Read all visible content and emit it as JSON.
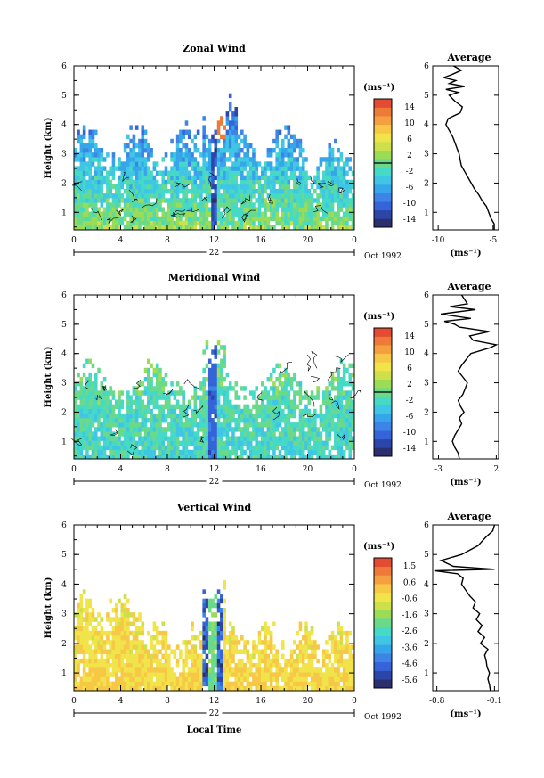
{
  "chart_data": [
    {
      "type": "heatmap",
      "title": "Zonal Wind",
      "ylabel": "Height (km)",
      "xlabel": "",
      "date_label": "Oct 1992",
      "day_label": "22",
      "x_ticks": [
        "0",
        "4",
        "8",
        "12",
        "16",
        "20",
        "0"
      ],
      "y_ticks": [
        "1",
        "2",
        "3",
        "4",
        "5",
        "6"
      ],
      "xlim": [
        0,
        24
      ],
      "ylim": [
        0.4,
        6.0
      ],
      "colorbar": {
        "unit": "(ms⁻¹)",
        "labels": [
          "14",
          "10",
          "6",
          "2",
          "-2",
          "-6",
          "-10",
          "-14"
        ],
        "range": [
          -15,
          15
        ]
      },
      "average_profile": {
        "title": "Average",
        "unit": "(ms⁻¹)",
        "x_ticks": [
          "-10",
          "-5"
        ],
        "xlim": [
          -10.5,
          -4.5
        ],
        "points": [
          [
            -4.9,
            0.4
          ],
          [
            -4.9,
            0.6
          ],
          [
            -5.2,
            0.8
          ],
          [
            -5.4,
            1.0
          ],
          [
            -5.6,
            1.2
          ],
          [
            -6.0,
            1.4
          ],
          [
            -6.3,
            1.6
          ],
          [
            -6.7,
            1.8
          ],
          [
            -7.0,
            2.0
          ],
          [
            -7.3,
            2.2
          ],
          [
            -7.6,
            2.4
          ],
          [
            -7.9,
            2.6
          ],
          [
            -8.0,
            2.8
          ],
          [
            -8.1,
            3.0
          ],
          [
            -8.3,
            3.2
          ],
          [
            -8.5,
            3.4
          ],
          [
            -8.7,
            3.6
          ],
          [
            -9.0,
            3.8
          ],
          [
            -9.3,
            4.0
          ],
          [
            -9.1,
            4.2
          ],
          [
            -8.0,
            4.4
          ],
          [
            -7.8,
            4.6
          ],
          [
            -8.5,
            4.8
          ],
          [
            -9.0,
            5.0
          ],
          [
            -8.2,
            5.1
          ],
          [
            -9.3,
            5.2
          ],
          [
            -7.6,
            5.3
          ],
          [
            -9.0,
            5.4
          ],
          [
            -8.4,
            5.5
          ],
          [
            -9.5,
            5.6
          ],
          [
            -8.8,
            5.7
          ],
          [
            -7.9,
            5.85
          ],
          [
            -8.6,
            6.0
          ]
        ]
      }
    },
    {
      "type": "heatmap",
      "title": "Meridional Wind",
      "ylabel": "Height (km)",
      "xlabel": "",
      "date_label": "Oct 1992",
      "day_label": "22",
      "x_ticks": [
        "0",
        "4",
        "8",
        "12",
        "16",
        "20",
        "0"
      ],
      "y_ticks": [
        "1",
        "2",
        "3",
        "4",
        "5",
        "6"
      ],
      "xlim": [
        0,
        24
      ],
      "ylim": [
        0.4,
        6.0
      ],
      "colorbar": {
        "unit": "(ms⁻¹)",
        "labels": [
          "14",
          "10",
          "6",
          "2",
          "-2",
          "-6",
          "-10",
          "-14"
        ],
        "range": [
          -15,
          15
        ]
      },
      "average_profile": {
        "title": "Average",
        "unit": "(ms⁻¹)",
        "x_ticks": [
          "-3",
          "2"
        ],
        "xlim": [
          -3.5,
          2.2
        ],
        "points": [
          [
            -1.2,
            0.4
          ],
          [
            -1.3,
            0.6
          ],
          [
            -1.6,
            0.8
          ],
          [
            -1.8,
            1.0
          ],
          [
            -1.6,
            1.2
          ],
          [
            -1.3,
            1.4
          ],
          [
            -1.0,
            1.6
          ],
          [
            -1.2,
            1.8
          ],
          [
            -0.8,
            2.0
          ],
          [
            -1.1,
            2.2
          ],
          [
            -1.3,
            2.4
          ],
          [
            -0.9,
            2.6
          ],
          [
            -0.7,
            2.8
          ],
          [
            -0.5,
            3.0
          ],
          [
            -0.9,
            3.2
          ],
          [
            -1.3,
            3.4
          ],
          [
            -1.0,
            3.6
          ],
          [
            -0.6,
            3.8
          ],
          [
            -0.2,
            4.0
          ],
          [
            1.5,
            4.2
          ],
          [
            2.0,
            4.3
          ],
          [
            0.0,
            4.45
          ],
          [
            -0.3,
            4.6
          ],
          [
            1.4,
            4.75
          ],
          [
            -1.2,
            4.9
          ],
          [
            -1.6,
            5.0
          ],
          [
            -2.5,
            5.1
          ],
          [
            -0.2,
            5.2
          ],
          [
            -2.8,
            5.35
          ],
          [
            0.2,
            5.5
          ],
          [
            -2.0,
            5.6
          ],
          [
            -0.5,
            5.7
          ],
          [
            -1.0,
            6.0
          ]
        ]
      }
    },
    {
      "type": "heatmap",
      "title": "Vertical Wind",
      "ylabel": "Height (km)",
      "xlabel": "Local Time",
      "date_label": "Oct 1992",
      "day_label": "22",
      "x_ticks": [
        "0",
        "4",
        "8",
        "12",
        "16",
        "20",
        "0"
      ],
      "y_ticks": [
        "1",
        "2",
        "3",
        "4",
        "5",
        "6"
      ],
      "xlim": [
        0,
        24
      ],
      "ylim": [
        0.4,
        6.0
      ],
      "colorbar": {
        "unit": "(ms⁻¹)",
        "labels": [
          "1.5",
          "0.6",
          "-0.6",
          "-1.6",
          "-2.6",
          "-3.6",
          "-4.6",
          "-5.6"
        ],
        "range": [
          -6.0,
          2.0
        ]
      },
      "average_profile": {
        "title": "Average",
        "unit": "(ms⁻¹)",
        "x_ticks": [
          "-0.8",
          "-0.1"
        ],
        "xlim": [
          -0.85,
          -0.05
        ],
        "points": [
          [
            -0.15,
            0.4
          ],
          [
            -0.16,
            0.6
          ],
          [
            -0.18,
            0.8
          ],
          [
            -0.16,
            1.0
          ],
          [
            -0.19,
            1.2
          ],
          [
            -0.2,
            1.4
          ],
          [
            -0.22,
            1.6
          ],
          [
            -0.18,
            1.8
          ],
          [
            -0.27,
            2.0
          ],
          [
            -0.22,
            2.2
          ],
          [
            -0.3,
            2.4
          ],
          [
            -0.25,
            2.6
          ],
          [
            -0.32,
            2.8
          ],
          [
            -0.28,
            3.0
          ],
          [
            -0.36,
            3.2
          ],
          [
            -0.33,
            3.4
          ],
          [
            -0.4,
            3.6
          ],
          [
            -0.45,
            3.8
          ],
          [
            -0.5,
            4.0
          ],
          [
            -0.48,
            4.2
          ],
          [
            -0.55,
            4.35
          ],
          [
            -0.82,
            4.45
          ],
          [
            -0.1,
            4.5
          ],
          [
            -0.6,
            4.6
          ],
          [
            -0.75,
            4.8
          ],
          [
            -0.5,
            5.0
          ],
          [
            -0.3,
            5.3
          ],
          [
            -0.2,
            5.6
          ],
          [
            -0.12,
            5.8
          ],
          [
            -0.1,
            6.0
          ]
        ]
      }
    }
  ]
}
